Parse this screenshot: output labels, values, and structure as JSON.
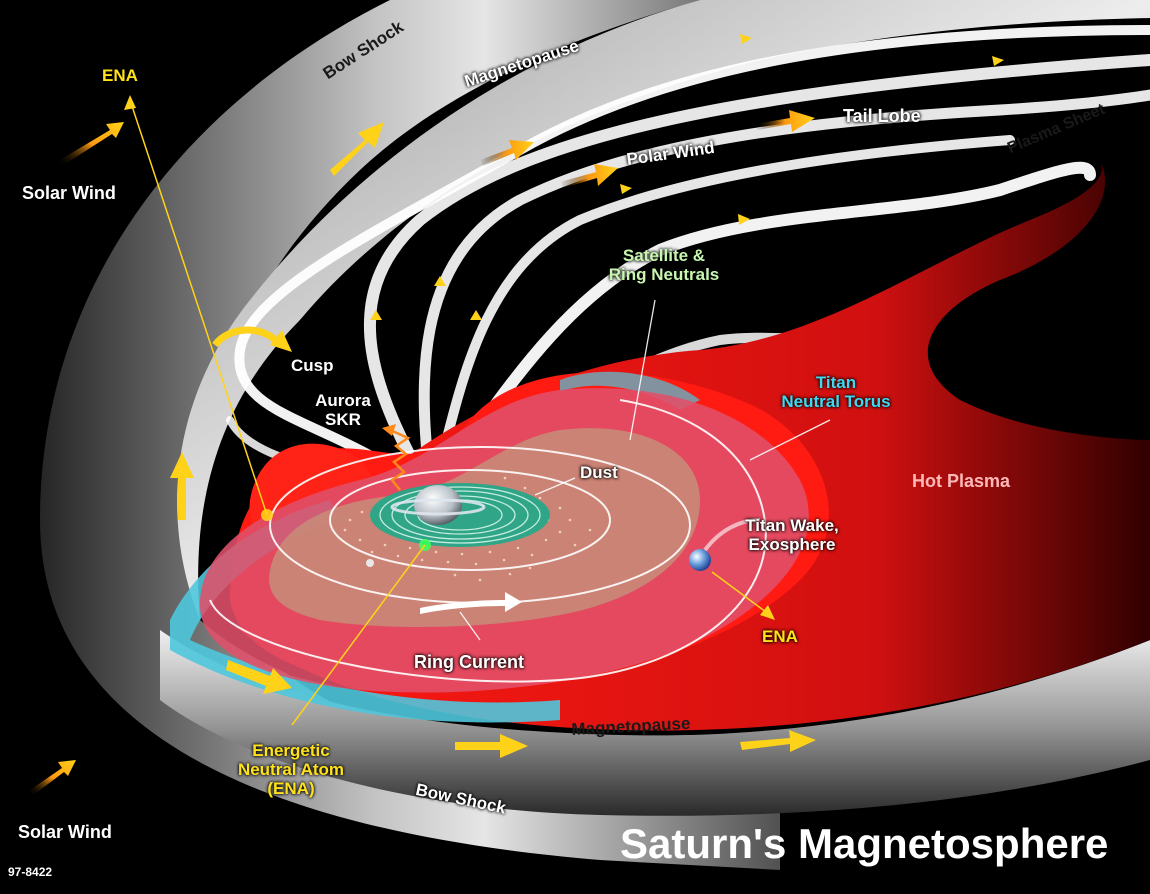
{
  "title": "Saturn's Magnetosphere",
  "figure_id": "97-8422",
  "labels": {
    "ena_top": "ENA",
    "solar_wind_top": "Solar Wind",
    "solar_wind_bottom": "Solar Wind",
    "bow_shock_top": "Bow Shock",
    "bow_shock_bottom": "Bow Shock",
    "magnetopause_top": "Magnetopause",
    "magnetopause_bottom": "Magnetopause",
    "tail_lobe": "Tail Lobe",
    "polar_wind": "Polar Wind",
    "plasma_sheet": "Plasma Sheet",
    "satellite_ring_neutrals_1": "Satellite &",
    "satellite_ring_neutrals_2": "Ring Neutrals",
    "cusp": "Cusp",
    "aurora": "Aurora",
    "skr": "SKR",
    "titan_1": "Titan",
    "titan_2": "Neutral Torus",
    "dust": "Dust",
    "hot_plasma": "Hot Plasma",
    "titan_wake_1": "Titan Wake,",
    "titan_wake_2": "Exosphere",
    "ena_right": "ENA",
    "ring_current": "Ring Current",
    "energetic_1": "Energetic",
    "energetic_2": "Neutral Atom",
    "energetic_3": "(ENA)"
  },
  "colors": {
    "background": "#000000",
    "plasma_red": "#ff1a12",
    "torus_pink": "#e0506a",
    "inner_salmon": "#c88a78",
    "torus_cyan": "#4fc6dc",
    "rings_teal": "#1fa88a",
    "arrow_yellow": "#ffd21a",
    "label_yellow": "#ffe21a",
    "label_green": "#c8f7b0",
    "label_cyan": "#3fd8f0"
  }
}
